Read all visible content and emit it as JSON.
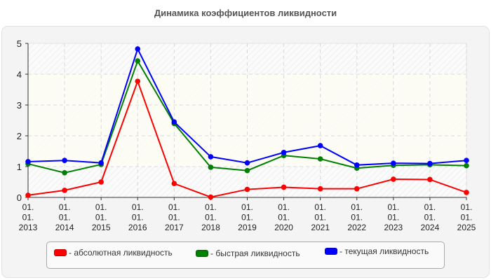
{
  "chart_data": {
    "type": "line",
    "title": "Динамика коэффициентов ликвидности",
    "xlabel": "",
    "ylabel": "",
    "ylim": [
      0,
      5
    ],
    "yticks": [
      "0",
      "1",
      "2",
      "3",
      "4",
      "5"
    ],
    "categories": [
      "01.\n01.\n2013",
      "01.\n01.\n2014",
      "01.\n01.\n2015",
      "01.\n01.\n2016",
      "01.\n01.\n2017",
      "01.\n01.\n2018",
      "01.\n01.\n2019",
      "01.\n01.\n2020",
      "01.\n01.\n2021",
      "01.\n01.\n2022",
      "01.\n01.\n2023",
      "01.\n01.\n2024",
      "01.\n01.\n2025"
    ],
    "grid": true,
    "legend_position": "bottom",
    "series": [
      {
        "name": "- абсолютная ликвидность",
        "color": "#ff0000",
        "values": [
          0.07,
          0.23,
          0.5,
          3.77,
          0.45,
          0.01,
          0.26,
          0.33,
          0.28,
          0.28,
          0.59,
          0.58,
          0.16
        ]
      },
      {
        "name": "- быстрая ликвидность",
        "color": "#008000",
        "values": [
          1.09,
          0.8,
          1.07,
          4.43,
          2.4,
          0.98,
          0.87,
          1.36,
          1.25,
          0.95,
          1.04,
          1.06,
          1.03
        ]
      },
      {
        "name": "- текущая ликвидность",
        "color": "#0000ff",
        "values": [
          1.16,
          1.2,
          1.12,
          4.82,
          2.45,
          1.32,
          1.12,
          1.46,
          1.68,
          1.05,
          1.11,
          1.1,
          1.2
        ]
      }
    ]
  }
}
